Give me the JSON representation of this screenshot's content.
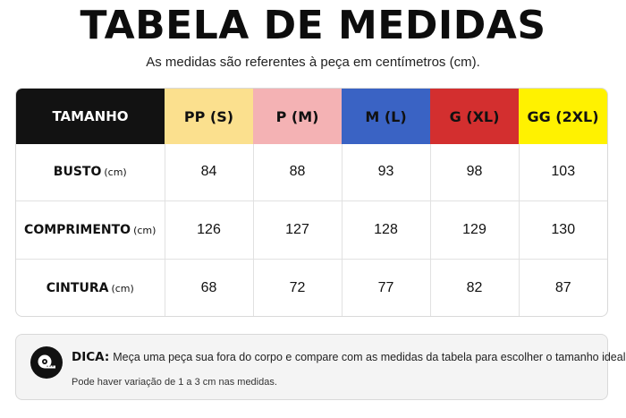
{
  "title": "TABELA DE MEDIDAS",
  "subtitle": "As medidas são referentes à peça em centímetros (cm).",
  "table": {
    "header_label": "TAMANHO",
    "sizes": [
      {
        "label": "PP (S)",
        "bg": "#fbe08e",
        "color": "#111111"
      },
      {
        "label": "P (M)",
        "bg": "#f4b2b4",
        "color": "#111111"
      },
      {
        "label": "M (L)",
        "bg": "#3a63c4",
        "color": "#111111"
      },
      {
        "label": "G (XL)",
        "bg": "#d32f2f",
        "color": "#111111"
      },
      {
        "label": "GG (2XL)",
        "bg": "#fff200",
        "color": "#111111"
      }
    ],
    "rows": [
      {
        "label": "BUSTO",
        "unit": "(cm)",
        "values": [
          "84",
          "88",
          "93",
          "98",
          "103"
        ]
      },
      {
        "label": "COMPRIMENTO",
        "unit": "(cm)",
        "values": [
          "126",
          "127",
          "128",
          "129",
          "130"
        ]
      },
      {
        "label": "CINTURA",
        "unit": "(cm)",
        "values": [
          "68",
          "72",
          "77",
          "82",
          "87"
        ]
      }
    ]
  },
  "tip": {
    "icon": "measuring-tape-icon",
    "label": "DICA:",
    "text": "Meça uma peça sua fora do corpo e compare com as medidas da tabela para escolher o tamanho ideal.",
    "note": "Pode haver variação de 1 a 3 cm nas medidas."
  }
}
